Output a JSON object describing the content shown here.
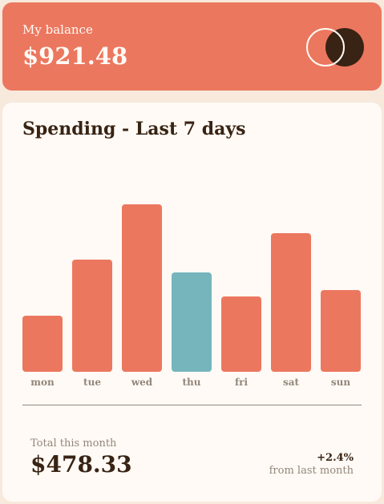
{
  "balance": {
    "label": "My balance",
    "amount": "$921.48",
    "logo_icon": "two-circles-logo-icon"
  },
  "spending": {
    "title": "Spending - Last 7 days",
    "total_label": "Total this month",
    "total_amount": "$478.33",
    "change_pct": "+2.4%",
    "change_label": "from last month"
  },
  "colors": {
    "accent": "#ec775f",
    "highlight": "#76b5bc",
    "dark": "#382314",
    "muted": "#93867b",
    "cream": "#fffaf5",
    "background": "#f8e9dd"
  },
  "chart_data": {
    "type": "bar",
    "categories": [
      "mon",
      "tue",
      "wed",
      "thu",
      "fri",
      "sat",
      "sun"
    ],
    "values": [
      17.45,
      34.91,
      52.36,
      31.07,
      23.39,
      43.28,
      25.48
    ],
    "highlight_category": "thu",
    "ylim": [
      0,
      60
    ],
    "grid": false,
    "legend": "none"
  }
}
